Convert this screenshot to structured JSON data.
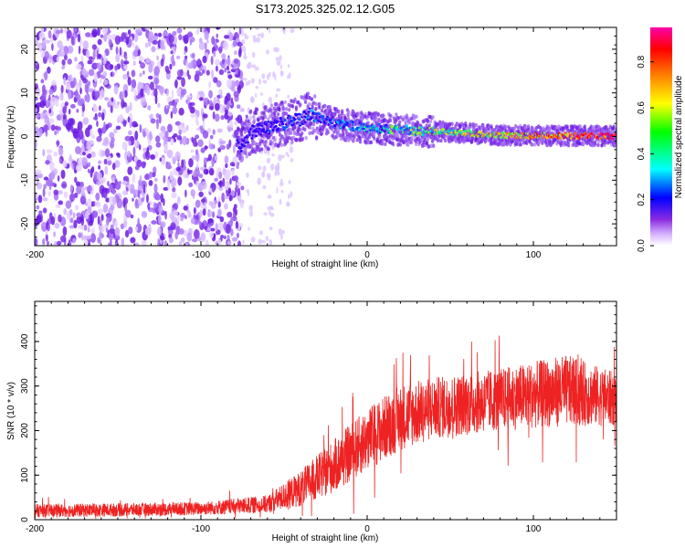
{
  "figure_title": "S173.2025.325.02.12.G05",
  "chart_data": [
    {
      "type": "heatmap",
      "title": "S173.2025.325.02.12.G05",
      "xlabel": "Height of straight line (km)",
      "ylabel": "Frequency (Hz)",
      "xlim": [
        -200,
        150
      ],
      "ylim": [
        -25,
        25
      ],
      "xticks": [
        -200,
        -100,
        0,
        100
      ],
      "xtick_labels": [
        "-200",
        "-100",
        "0",
        "100"
      ],
      "yticks": [
        -20,
        -10,
        0,
        10,
        20
      ],
      "ytick_labels": [
        "-20",
        "-10",
        "0",
        "10",
        "20"
      ],
      "colorbar": {
        "label": "Normalized spectral amplitude",
        "range": [
          0,
          0.95
        ],
        "ticks": [
          0.0,
          0.2,
          0.4,
          0.6,
          0.8
        ],
        "tick_labels": [
          "0.0",
          "0.2",
          "0.4",
          "0.6",
          "0.8"
        ],
        "colors": [
          "#ffffff",
          "#e0c0ff",
          "#8a2be2",
          "#0000ff",
          "#00ffff",
          "#00ff00",
          "#ffff00",
          "#ff8000",
          "#ff0000",
          "#ff00aa"
        ]
      },
      "ridge": {
        "description_points_x": [
          -75,
          -70,
          -60,
          -50,
          -40,
          -35,
          -20,
          0,
          20,
          50,
          80,
          100,
          150
        ],
        "description_points_y": [
          -2,
          1,
          2,
          3,
          4,
          5,
          3,
          2,
          1.5,
          1,
          0.3,
          0.2,
          0.1
        ]
      },
      "noise_region_x": [
        -200,
        -75
      ]
    },
    {
      "type": "line",
      "xlabel": "Height of straight line (km)",
      "ylabel": "SNR (10 * v/v)",
      "xlim": [
        -200,
        150
      ],
      "ylim": [
        0,
        490
      ],
      "xticks": [
        -200,
        -100,
        0,
        100
      ],
      "xtick_labels": [
        "-200",
        "-100",
        "0",
        "100"
      ],
      "yticks": [
        0,
        100,
        200,
        300,
        400
      ],
      "ytick_labels": [
        "0",
        "100",
        "200",
        "300",
        "400"
      ],
      "series": [
        {
          "name": "SNR",
          "color": "#ee2222",
          "trend_x": [
            -200,
            -150,
            -100,
            -60,
            -40,
            -20,
            0,
            20,
            40,
            60,
            80,
            100,
            120,
            150
          ],
          "trend_y": [
            20,
            22,
            25,
            35,
            70,
            120,
            180,
            230,
            250,
            260,
            270,
            280,
            290,
            270
          ],
          "noise_amplitude": [
            15,
            15,
            15,
            20,
            40,
            60,
            70,
            75,
            70,
            70,
            70,
            75,
            80,
            60
          ]
        }
      ]
    }
  ]
}
